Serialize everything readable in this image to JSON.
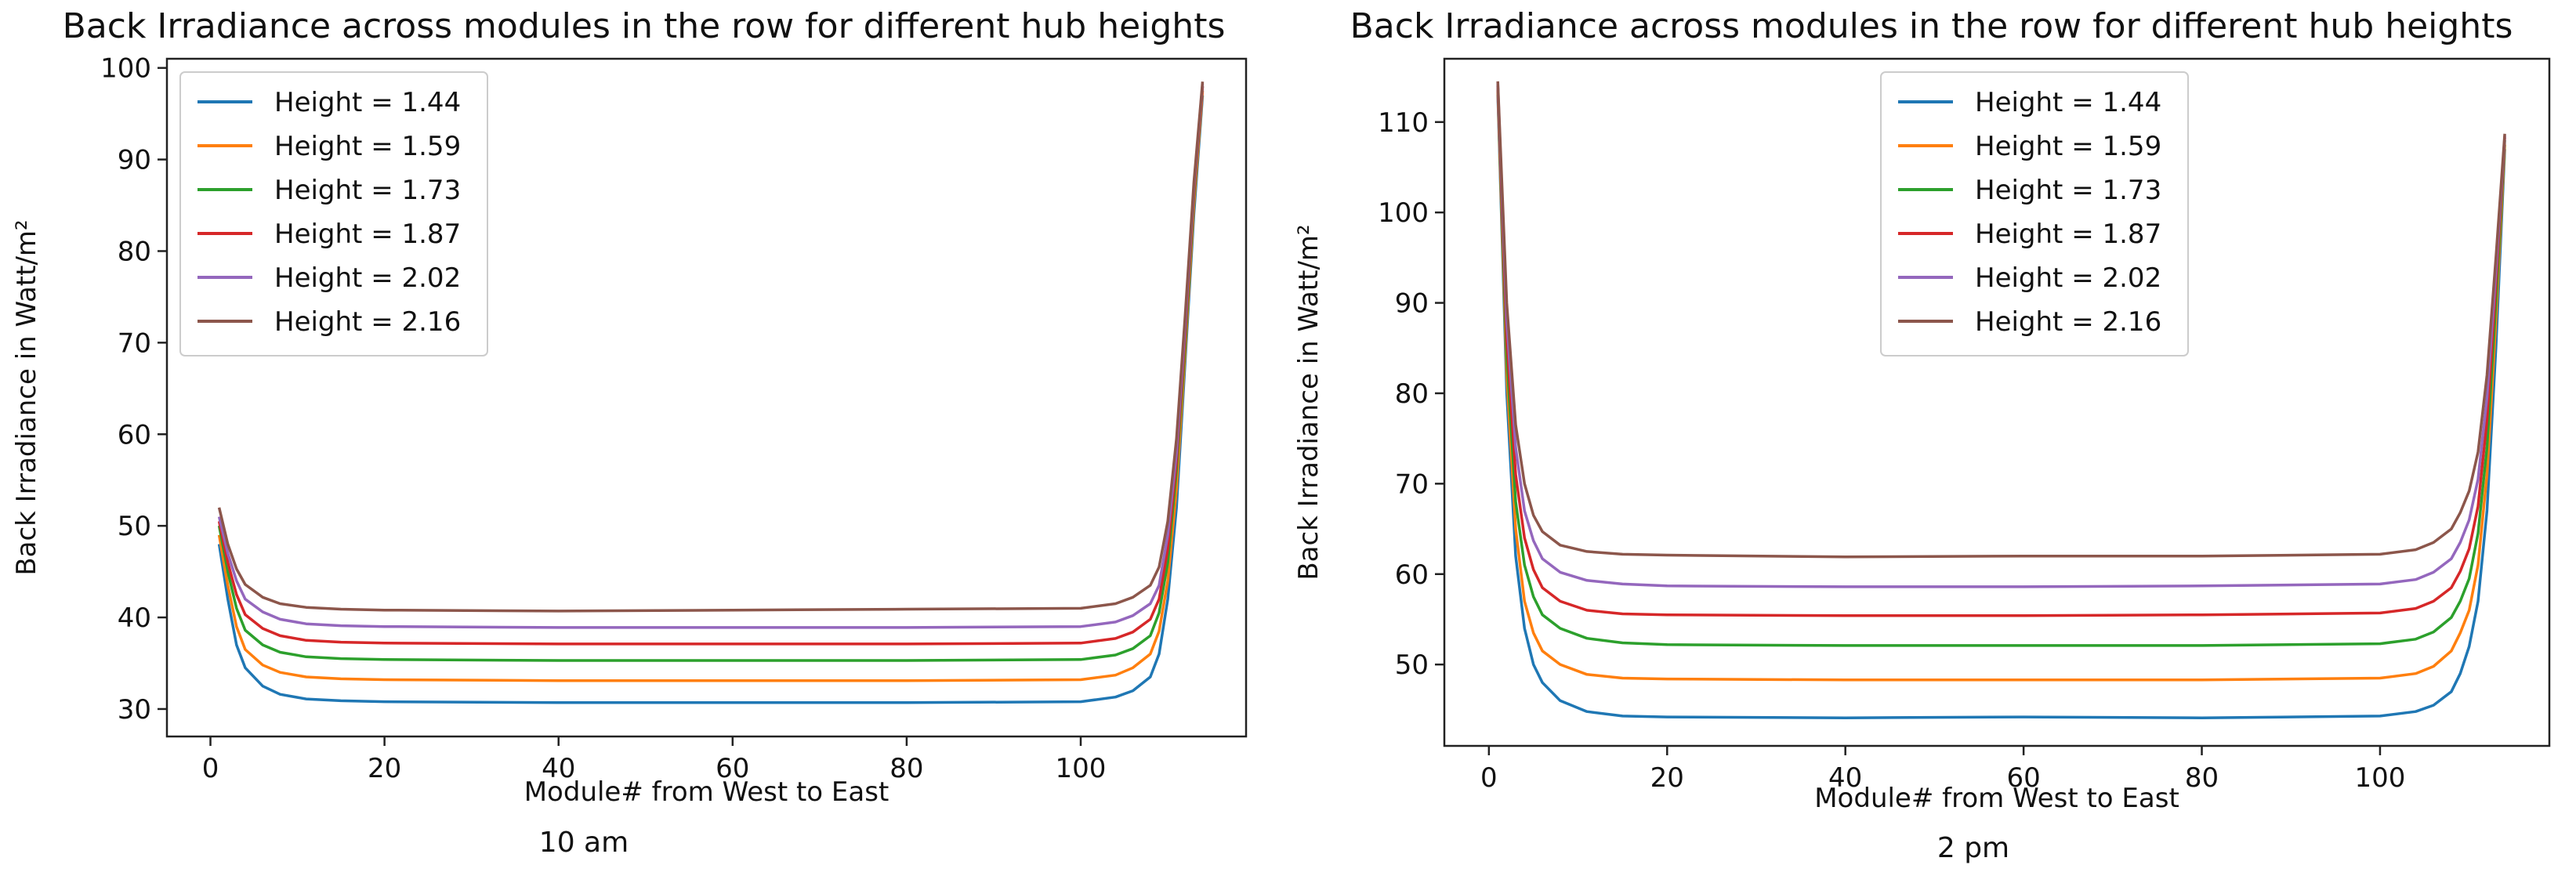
{
  "chart_data": [
    {
      "type": "line",
      "title": "Back Irradiance across modules in the row for different hub heights",
      "caption": "10 am",
      "xlabel": "Module# from West to East",
      "ylabel": "Back Irradiance in Watt/m²",
      "xlim": [
        -5,
        119
      ],
      "ylim": [
        27,
        101
      ],
      "xticks": [
        0,
        20,
        40,
        60,
        80,
        100
      ],
      "yticks": [
        30,
        40,
        50,
        60,
        70,
        80,
        90,
        100
      ],
      "legend_position": "upper-left",
      "grid": false,
      "series": [
        {
          "name": "Height = 1.44",
          "color": "#1f77b4",
          "x": [
            1,
            2,
            3,
            4,
            6,
            8,
            11,
            15,
            20,
            40,
            60,
            80,
            100,
            104,
            106,
            108,
            109,
            110,
            111,
            112,
            113,
            114
          ],
          "y": [
            48,
            42,
            37,
            34.5,
            32.5,
            31.6,
            31.1,
            30.9,
            30.8,
            30.7,
            30.7,
            30.7,
            30.8,
            31.3,
            32,
            33.5,
            36,
            42,
            52,
            68,
            84,
            97
          ]
        },
        {
          "name": "Height = 1.59",
          "color": "#ff7f0e",
          "x": [
            1,
            2,
            3,
            4,
            6,
            8,
            11,
            15,
            20,
            40,
            60,
            80,
            100,
            104,
            106,
            108,
            109,
            110,
            111,
            112,
            113,
            114
          ],
          "y": [
            49,
            43.5,
            39,
            36.5,
            34.8,
            34,
            33.5,
            33.3,
            33.2,
            33.1,
            33.1,
            33.1,
            33.2,
            33.7,
            34.5,
            36,
            38.5,
            44,
            54,
            69,
            85,
            97.5
          ]
        },
        {
          "name": "Height = 1.73",
          "color": "#2ca02c",
          "x": [
            1,
            2,
            3,
            4,
            6,
            8,
            11,
            15,
            20,
            40,
            60,
            80,
            100,
            104,
            106,
            108,
            109,
            110,
            111,
            112,
            113,
            114
          ],
          "y": [
            50,
            45,
            41,
            38.6,
            37,
            36.2,
            35.7,
            35.5,
            35.4,
            35.3,
            35.3,
            35.3,
            35.4,
            35.9,
            36.6,
            38,
            40.5,
            46,
            56,
            70,
            86,
            98
          ]
        },
        {
          "name": "Height = 1.87",
          "color": "#d62728",
          "x": [
            1,
            2,
            3,
            4,
            6,
            8,
            11,
            15,
            20,
            40,
            60,
            80,
            100,
            104,
            106,
            108,
            109,
            110,
            111,
            112,
            113,
            114
          ],
          "y": [
            50.5,
            46,
            42.5,
            40.3,
            38.8,
            38,
            37.5,
            37.3,
            37.2,
            37.1,
            37.1,
            37.1,
            37.2,
            37.7,
            38.4,
            39.8,
            42,
            47.5,
            57,
            71,
            86.5,
            98
          ]
        },
        {
          "name": "Height = 2.02",
          "color": "#9467bd",
          "x": [
            1,
            2,
            3,
            4,
            6,
            8,
            11,
            15,
            20,
            40,
            60,
            80,
            100,
            104,
            106,
            108,
            109,
            110,
            111,
            112,
            113,
            114
          ],
          "y": [
            51,
            47,
            44,
            42,
            40.6,
            39.8,
            39.3,
            39.1,
            39,
            38.9,
            38.9,
            38.9,
            39,
            39.5,
            40.2,
            41.5,
            43.5,
            49,
            58,
            72,
            87,
            98.3
          ]
        },
        {
          "name": "Height = 2.16",
          "color": "#8c564b",
          "x": [
            1,
            2,
            3,
            4,
            6,
            8,
            11,
            15,
            20,
            40,
            60,
            80,
            100,
            104,
            106,
            108,
            109,
            110,
            111,
            112,
            113,
            114
          ],
          "y": [
            52,
            48,
            45.3,
            43.6,
            42.2,
            41.5,
            41.1,
            40.9,
            40.8,
            40.7,
            40.8,
            40.9,
            41,
            41.5,
            42.2,
            43.5,
            45.5,
            50.5,
            59.5,
            73,
            87.5,
            98.5
          ]
        }
      ]
    },
    {
      "type": "line",
      "title": "Back Irradiance across modules in the row for different hub heights",
      "caption": "2 pm",
      "xlabel": "Module# from West to East",
      "ylabel": "Back Irradiance in Watt/m²",
      "xlim": [
        -5,
        119
      ],
      "ylim": [
        41,
        117
      ],
      "xticks": [
        0,
        20,
        40,
        60,
        80,
        100
      ],
      "yticks": [
        50,
        60,
        70,
        80,
        90,
        100,
        110
      ],
      "legend_position": "upper-center",
      "grid": false,
      "series": [
        {
          "name": "Height = 1.44",
          "color": "#1f77b4",
          "x": [
            1,
            2,
            3,
            4,
            5,
            6,
            8,
            11,
            15,
            20,
            40,
            60,
            80,
            100,
            104,
            106,
            108,
            109,
            110,
            111,
            112,
            113,
            114
          ],
          "y": [
            113,
            80,
            62,
            54,
            50,
            48,
            46,
            44.8,
            44.3,
            44.2,
            44.1,
            44.2,
            44.1,
            44.3,
            44.8,
            45.5,
            47,
            49,
            52,
            57,
            67,
            85,
            107
          ]
        },
        {
          "name": "Height = 1.59",
          "color": "#ff7f0e",
          "x": [
            1,
            2,
            3,
            4,
            5,
            6,
            8,
            11,
            15,
            20,
            40,
            60,
            80,
            100,
            104,
            106,
            108,
            109,
            110,
            111,
            112,
            113,
            114
          ],
          "y": [
            113.5,
            82,
            65,
            57,
            53.5,
            51.5,
            50,
            48.9,
            48.5,
            48.4,
            48.3,
            48.3,
            48.3,
            48.5,
            49,
            49.8,
            51.5,
            53.5,
            56,
            61,
            71,
            88,
            107.5
          ]
        },
        {
          "name": "Height = 1.73",
          "color": "#2ca02c",
          "x": [
            1,
            2,
            3,
            4,
            5,
            6,
            8,
            11,
            15,
            20,
            40,
            60,
            80,
            100,
            104,
            106,
            108,
            109,
            110,
            111,
            112,
            113,
            114
          ],
          "y": [
            114,
            84,
            68,
            61,
            57.5,
            55.5,
            54,
            52.9,
            52.4,
            52.2,
            52.1,
            52.1,
            52.1,
            52.3,
            52.8,
            53.6,
            55.2,
            57,
            59.5,
            64.5,
            74,
            90,
            108
          ]
        },
        {
          "name": "Height = 1.87",
          "color": "#d62728",
          "x": [
            1,
            2,
            3,
            4,
            5,
            6,
            8,
            11,
            15,
            20,
            40,
            60,
            80,
            100,
            104,
            106,
            108,
            109,
            110,
            111,
            112,
            113,
            114
          ],
          "y": [
            114,
            86,
            71,
            64,
            60.5,
            58.5,
            57,
            56,
            55.6,
            55.5,
            55.4,
            55.4,
            55.5,
            55.7,
            56.2,
            57,
            58.5,
            60.3,
            62.8,
            67.5,
            77,
            92,
            108.3
          ]
        },
        {
          "name": "Height = 2.02",
          "color": "#9467bd",
          "x": [
            1,
            2,
            3,
            4,
            5,
            6,
            8,
            11,
            15,
            20,
            40,
            60,
            80,
            100,
            104,
            106,
            108,
            109,
            110,
            111,
            112,
            113,
            114
          ],
          "y": [
            114.3,
            88,
            74,
            67,
            63.7,
            61.7,
            60.2,
            59.3,
            58.9,
            58.7,
            58.6,
            58.6,
            58.7,
            58.9,
            59.4,
            60.2,
            61.7,
            63.5,
            66,
            70.5,
            79.5,
            93.5,
            108.5
          ]
        },
        {
          "name": "Height = 2.16",
          "color": "#8c564b",
          "x": [
            1,
            2,
            3,
            4,
            5,
            6,
            8,
            11,
            15,
            20,
            40,
            60,
            80,
            100,
            104,
            106,
            108,
            109,
            110,
            111,
            112,
            113,
            114
          ],
          "y": [
            114.5,
            90,
            76.5,
            70,
            66.5,
            64.7,
            63.2,
            62.5,
            62.2,
            62.1,
            61.9,
            62,
            62,
            62.2,
            62.7,
            63.5,
            65,
            66.8,
            69.2,
            73.5,
            82,
            95,
            108.7
          ]
        }
      ]
    }
  ]
}
